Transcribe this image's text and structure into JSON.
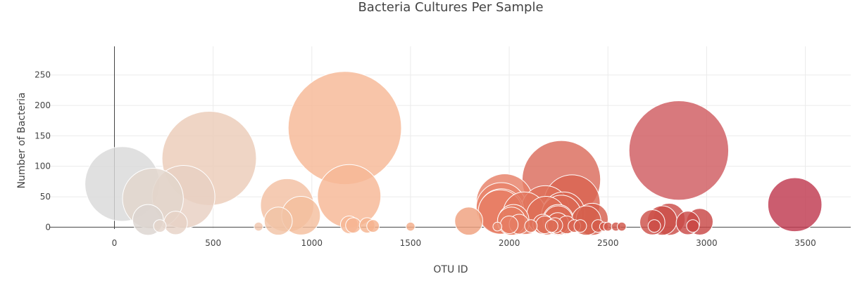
{
  "chart_data": {
    "type": "scatter",
    "title": "Bacteria Cultures Per Sample",
    "xlabel": "OTU ID",
    "ylabel": "Number of Bacteria",
    "xlim": [
      -330,
      3730
    ],
    "ylim": [
      -3,
      297
    ],
    "x_ticks": [
      0,
      500,
      1000,
      1500,
      2000,
      2500,
      3000,
      3500
    ],
    "y_ticks": [
      0,
      50,
      100,
      150,
      200,
      250
    ],
    "grid": true,
    "legend": false,
    "marker_sizing": "marker area proportional to value",
    "colorscale": "gray to peach to dark red by OTU ID",
    "points": [
      {
        "x": 40,
        "y": 71,
        "color": "#d9d9d9"
      },
      {
        "x": 170,
        "y": 12,
        "color": "#dcd4d0"
      },
      {
        "x": 195,
        "y": 47,
        "color": "#e2d5cc"
      },
      {
        "x": 310,
        "y": 7,
        "color": "#e6d2c6"
      },
      {
        "x": 350,
        "y": 50,
        "color": "#e8d0c2"
      },
      {
        "x": 480,
        "y": 113,
        "color": "#ecccb8"
      },
      {
        "x": 830,
        "y": 10,
        "color": "#f2c3a6"
      },
      {
        "x": 875,
        "y": 36,
        "color": "#f3c0a2"
      },
      {
        "x": 945,
        "y": 19,
        "color": "#f4be9e"
      },
      {
        "x": 1167,
        "y": 163,
        "color": "#f6b896"
      },
      {
        "x": 1189,
        "y": 51,
        "color": "#f6b795"
      },
      {
        "x": 1795,
        "y": 10,
        "color": "#efa07e"
      },
      {
        "x": 1955,
        "y": 25,
        "color": "#e8826a"
      },
      {
        "x": 1960,
        "y": 32,
        "color": "#e88369"
      },
      {
        "x": 1977,
        "y": 41,
        "color": "#e78068"
      },
      {
        "x": 1960,
        "y": 26,
        "color": "#e46e4f"
      },
      {
        "x": 2011,
        "y": 10,
        "color": "#e57c62"
      },
      {
        "x": 2022,
        "y": 12,
        "color": "#e47a60"
      },
      {
        "x": 2077,
        "y": 23,
        "color": "#e2765e"
      },
      {
        "x": 2182,
        "y": 29,
        "color": "#de6f58"
      },
      {
        "x": 2186,
        "y": 19,
        "color": "#de6e57"
      },
      {
        "x": 2248,
        "y": 12,
        "color": "#dc6a54"
      },
      {
        "x": 2248,
        "y": 11,
        "color": "#dc6a54"
      },
      {
        "x": 2264,
        "y": 20,
        "color": "#db6853"
      },
      {
        "x": 2264,
        "y": 78,
        "color": "#da6b5c"
      },
      {
        "x": 2275,
        "y": 23,
        "color": "#db6853"
      },
      {
        "x": 2318,
        "y": 40,
        "color": "#d96450"
      },
      {
        "x": 2390,
        "y": 11,
        "color": "#d6604d"
      },
      {
        "x": 2420,
        "y": 13,
        "color": "#d55e4c"
      },
      {
        "x": 2725,
        "y": 8,
        "color": "#cd5049"
      },
      {
        "x": 2775,
        "y": 11,
        "color": "#cc4e48"
      },
      {
        "x": 2810,
        "y": 13,
        "color": "#cb4d48"
      },
      {
        "x": 2859,
        "y": 126,
        "color": "#cf5c60"
      },
      {
        "x": 2905,
        "y": 7,
        "color": "#c94947"
      },
      {
        "x": 2965,
        "y": 9,
        "color": "#c84746"
      },
      {
        "x": 3447,
        "y": 37,
        "color": "#c0394f"
      },
      {
        "x": 230,
        "y": 2,
        "color": "#e4d4ca"
      },
      {
        "x": 730,
        "y": 1,
        "color": "#f0c6ad"
      },
      {
        "x": 1190,
        "y": 4,
        "color": "#f6b795"
      },
      {
        "x": 1210,
        "y": 3,
        "color": "#f6b694"
      },
      {
        "x": 1280,
        "y": 3,
        "color": "#f5b490"
      },
      {
        "x": 1310,
        "y": 2,
        "color": "#f5b28e"
      },
      {
        "x": 1500,
        "y": 1,
        "color": "#f3ac89"
      },
      {
        "x": 1940,
        "y": 1,
        "color": "#e88a6f"
      },
      {
        "x": 2000,
        "y": 4,
        "color": "#e67e64"
      },
      {
        "x": 2050,
        "y": 5,
        "color": "#e3785f"
      },
      {
        "x": 2110,
        "y": 2,
        "color": "#e1745c"
      },
      {
        "x": 2170,
        "y": 5,
        "color": "#df705a"
      },
      {
        "x": 2180,
        "y": 4,
        "color": "#de6f58"
      },
      {
        "x": 2215,
        "y": 2,
        "color": "#dd6c56"
      },
      {
        "x": 2232,
        "y": 3,
        "color": "#dc6b55"
      },
      {
        "x": 2246,
        "y": 6,
        "color": "#dc6a54"
      },
      {
        "x": 2290,
        "y": 4,
        "color": "#da6752"
      },
      {
        "x": 2330,
        "y": 2,
        "color": "#d96450"
      },
      {
        "x": 2360,
        "y": 2,
        "color": "#d7624e"
      },
      {
        "x": 2450,
        "y": 2,
        "color": "#d45c4b"
      },
      {
        "x": 2480,
        "y": 1,
        "color": "#d35a4b"
      },
      {
        "x": 2500,
        "y": 1,
        "color": "#d2594a"
      },
      {
        "x": 2540,
        "y": 1,
        "color": "#d1574a"
      },
      {
        "x": 2570,
        "y": 1,
        "color": "#d05649"
      },
      {
        "x": 2735,
        "y": 2,
        "color": "#cd5049"
      },
      {
        "x": 2930,
        "y": 2,
        "color": "#c94947"
      }
    ]
  }
}
